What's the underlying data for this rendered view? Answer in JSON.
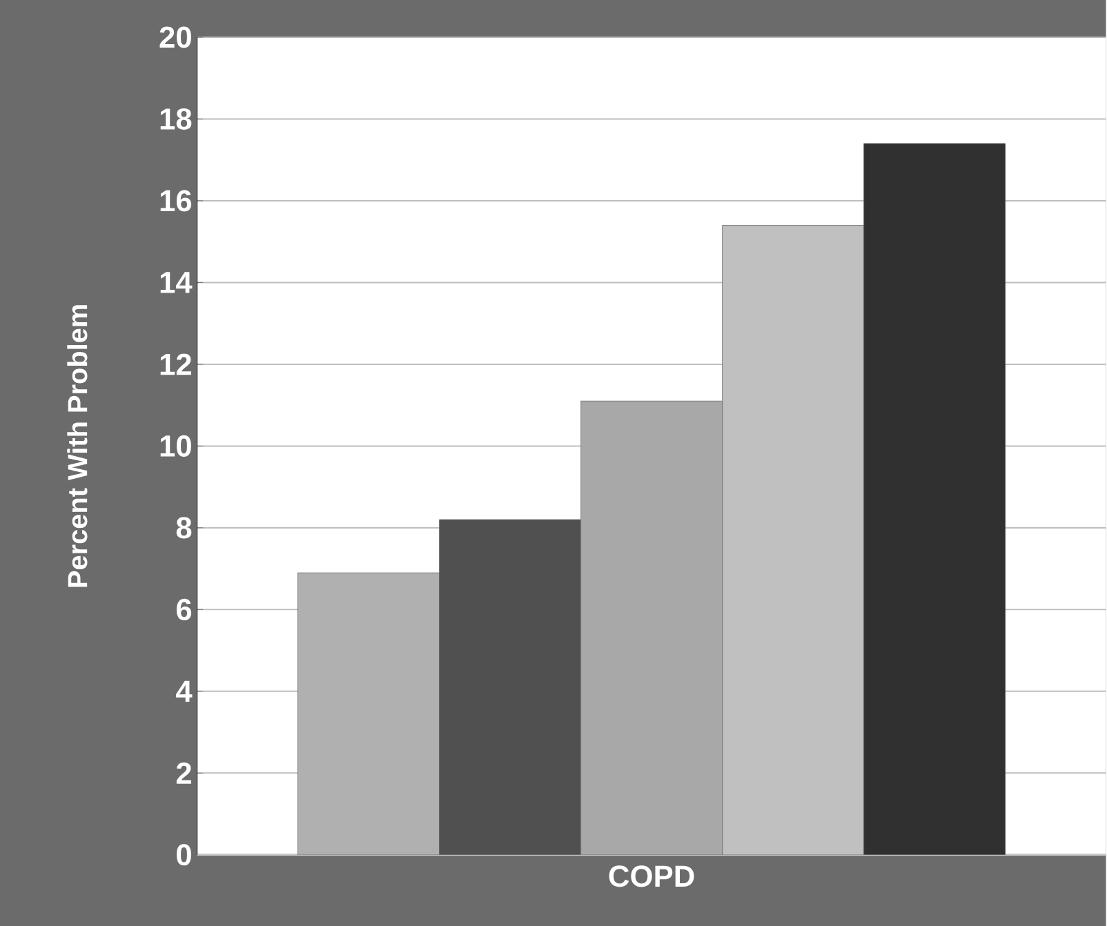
{
  "chart_data": {
    "type": "bar",
    "ylabel": "Percent With Problem",
    "categories": [
      "COPD"
    ],
    "series": [
      {
        "color": "#b0b0b0",
        "values": [
          6.9
        ]
      },
      {
        "color": "#505050",
        "values": [
          8.2
        ]
      },
      {
        "color": "#a8a8a8",
        "values": [
          11.1
        ]
      },
      {
        "color": "#c0c0c0",
        "values": [
          15.4
        ]
      },
      {
        "color": "#303030",
        "values": [
          17.4
        ]
      }
    ],
    "ylim": [
      0,
      20
    ],
    "yticks": [
      0,
      2,
      4,
      6,
      8,
      10,
      12,
      14,
      16,
      18,
      20
    ],
    "grid": "y"
  }
}
